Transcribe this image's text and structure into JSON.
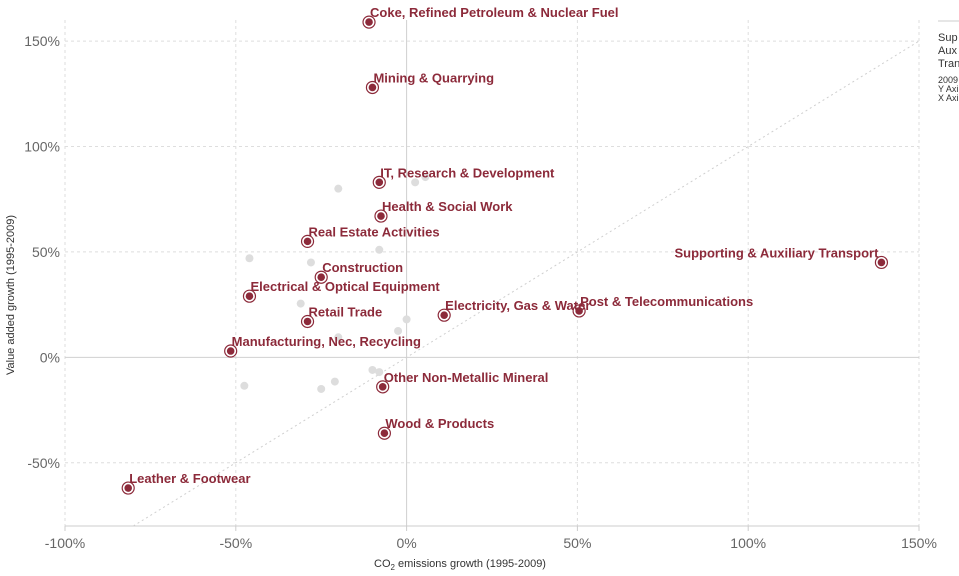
{
  "chart_data": {
    "type": "scatter",
    "xlabel_main": "CO",
    "xlabel_sub": "2",
    "xlabel_rest": " emissions growth (1995-2009)",
    "ylabel": "Value added growth (1995-2009)",
    "xlim": [
      -100,
      150
    ],
    "ylim": [
      -80,
      160
    ],
    "x_ticks": [
      -100,
      -50,
      0,
      50,
      100,
      150
    ],
    "x_tick_labels": [
      "-100%",
      "-50%",
      "0%",
      "50%",
      "100%",
      "150%"
    ],
    "y_ticks": [
      -50,
      0,
      50,
      100,
      150
    ],
    "y_tick_labels": [
      "-50%",
      "0%",
      "50%",
      "100%",
      "150%"
    ],
    "grid": true,
    "reference_line": "y = x",
    "highlight_color": "#8c2a3a",
    "background_point_color": "#dddddd",
    "highlighted": [
      {
        "label": "Coke, Refined Petroleum & Nuclear Fuel",
        "x": -11,
        "y": 159
      },
      {
        "label": "Mining & Quarrying",
        "x": -10,
        "y": 128
      },
      {
        "label": "IT, Research & Development",
        "x": -8,
        "y": 83
      },
      {
        "label": "Health & Social Work",
        "x": -7.5,
        "y": 67
      },
      {
        "label": "Real Estate Activities",
        "x": -29,
        "y": 55
      },
      {
        "label": "Supporting & Auxiliary Transport",
        "x": 139,
        "y": 45
      },
      {
        "label": "Construction",
        "x": -25,
        "y": 38
      },
      {
        "label": "Electrical & Optical Equipment",
        "x": -46,
        "y": 29
      },
      {
        "label": "Post & Telecommunications",
        "x": 50.5,
        "y": 22
      },
      {
        "label": "Electricity, Gas & Water",
        "x": 11,
        "y": 20
      },
      {
        "label": "Retail Trade",
        "x": -29,
        "y": 17
      },
      {
        "label": "Manufacturing, Nec, Recycling",
        "x": -51.5,
        "y": 3
      },
      {
        "label": "Other Non-Metallic Mineral",
        "x": -7,
        "y": -14
      },
      {
        "label": "Wood & Products",
        "x": -6.5,
        "y": -36
      },
      {
        "label": "Leather & Footwear",
        "x": -81.5,
        "y": -62
      }
    ],
    "background": [
      {
        "x": -20,
        "y": 80
      },
      {
        "x": 2.5,
        "y": 83
      },
      {
        "x": 5.5,
        "y": 85.5
      },
      {
        "x": -46,
        "y": 47
      },
      {
        "x": -8,
        "y": 51
      },
      {
        "x": -28,
        "y": 45
      },
      {
        "x": -31,
        "y": 25.5
      },
      {
        "x": 0,
        "y": 18
      },
      {
        "x": -2.5,
        "y": 12.5
      },
      {
        "x": -20,
        "y": 9.5
      },
      {
        "x": -10,
        "y": -6
      },
      {
        "x": -8,
        "y": -7
      },
      {
        "x": -47.5,
        "y": -13.5
      },
      {
        "x": -25,
        "y": -15
      },
      {
        "x": -21,
        "y": -11.5
      }
    ]
  },
  "legend": {
    "title": "Sup Aux Tran",
    "line1": "Sup",
    "line2": "Aux",
    "line3": "Tran",
    "small1": "2009",
    "small2": "Y Axi",
    "small3": "X Axi"
  }
}
